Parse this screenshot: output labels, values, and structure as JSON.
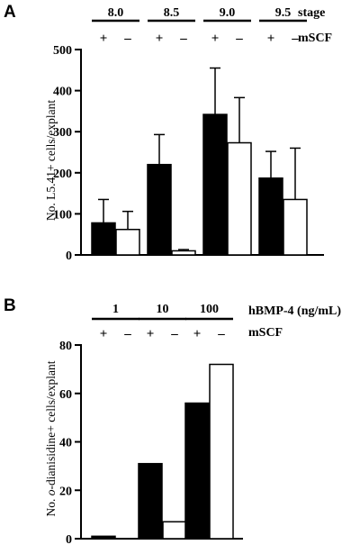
{
  "chart_data": [
    {
      "panel_label": "A",
      "type": "bar",
      "ylabel": "No. L5.41+ cells/explant",
      "ylim": [
        0,
        500
      ],
      "yticks": [
        0,
        100,
        200,
        300,
        400,
        500
      ],
      "group_header": "stage",
      "treatment_header": "mSCF",
      "groups": [
        "8.0",
        "8.5",
        "9.0",
        "9.5"
      ],
      "treatment_labels": [
        "+",
        "–"
      ],
      "series": [
        {
          "treatment": "+",
          "fill": "#000000",
          "values": [
            78,
            220,
            342,
            187
          ],
          "errors": [
            57,
            73,
            113,
            65
          ]
        },
        {
          "treatment": "–",
          "fill": "#ffffff",
          "values": [
            62,
            10,
            273,
            135
          ],
          "errors": [
            44,
            3,
            110,
            125
          ]
        }
      ]
    },
    {
      "panel_label": "B",
      "type": "bar",
      "ylabel": "No. o-dianisidine+ cells/explant",
      "ylabel_italic_part": "o",
      "ylim": [
        0,
        80
      ],
      "yticks": [
        0,
        20,
        40,
        60,
        80
      ],
      "group_header": "hBMP-4 (ng/mL)",
      "treatment_header": "mSCF",
      "groups": [
        "1",
        "10",
        "100"
      ],
      "treatment_labels": [
        "+",
        "–"
      ],
      "series": [
        {
          "treatment": "+",
          "fill": "#000000",
          "values": [
            1,
            31,
            56
          ]
        },
        {
          "treatment": "–",
          "fill": "#ffffff",
          "values": [
            0,
            7,
            72
          ]
        }
      ]
    }
  ]
}
